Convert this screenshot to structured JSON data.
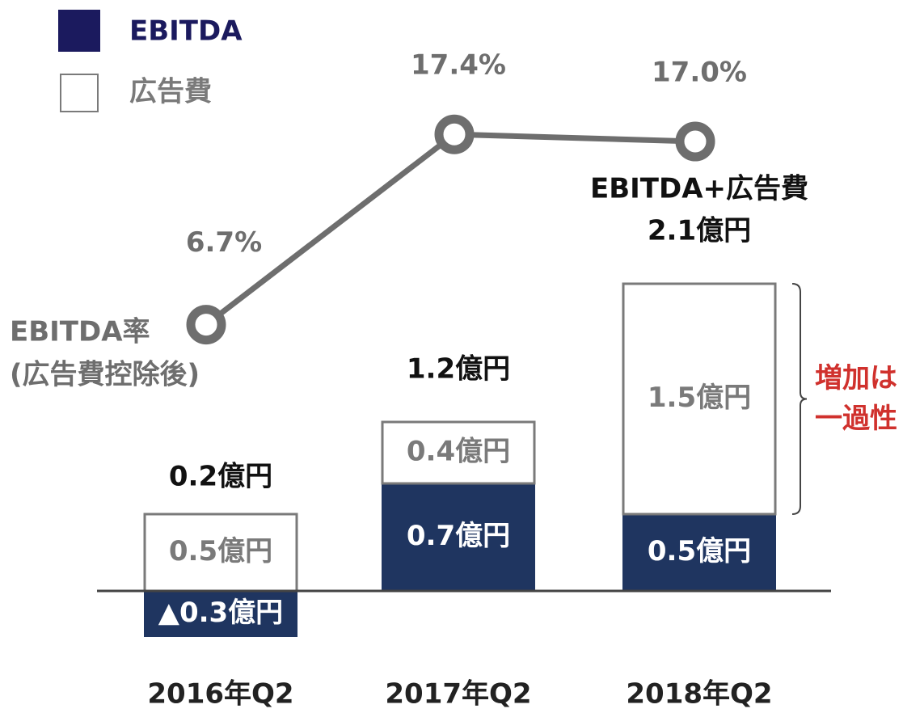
{
  "chart_data": {
    "type": "bar",
    "stacked": true,
    "categories": [
      "2016年Q2",
      "2017年Q2",
      "2018年Q2"
    ],
    "ylim": [
      -0.5,
      2.5
    ],
    "y2lim": [
      0,
      20
    ],
    "series": [
      {
        "name": "EBITDA",
        "color": "#1f3560",
        "legend_color": "#1b1a5e",
        "values": [
          -0.3,
          0.7,
          0.5
        ],
        "value_labels": [
          "▲0.3億円",
          "0.7億円",
          "0.5億円"
        ]
      },
      {
        "name": "広告費",
        "color": "#ffffff",
        "stroke": "#7a7a7a",
        "values": [
          0.5,
          0.4,
          1.5
        ],
        "value_labels": [
          "0.5億円",
          "0.4億円",
          "1.5億円"
        ]
      },
      {
        "name": [
          "EBITDA率",
          "(広告費控除後)"
        ],
        "type": "line",
        "axis": "y2",
        "color": "#6e6e6e",
        "values": [
          6.7,
          17.4,
          17.0
        ],
        "value_labels": [
          "6.7%",
          "17.4%",
          "17.0%"
        ]
      }
    ],
    "totals": {
      "values": [
        0.2,
        1.2,
        2.1
      ],
      "value_labels": [
        "0.2億円",
        "1.2億円",
        "2.1億円"
      ],
      "note": "EBITDA+広告費"
    },
    "annotation": {
      "lines": [
        "増加は",
        "一過性"
      ],
      "color": "#d0312d"
    }
  }
}
